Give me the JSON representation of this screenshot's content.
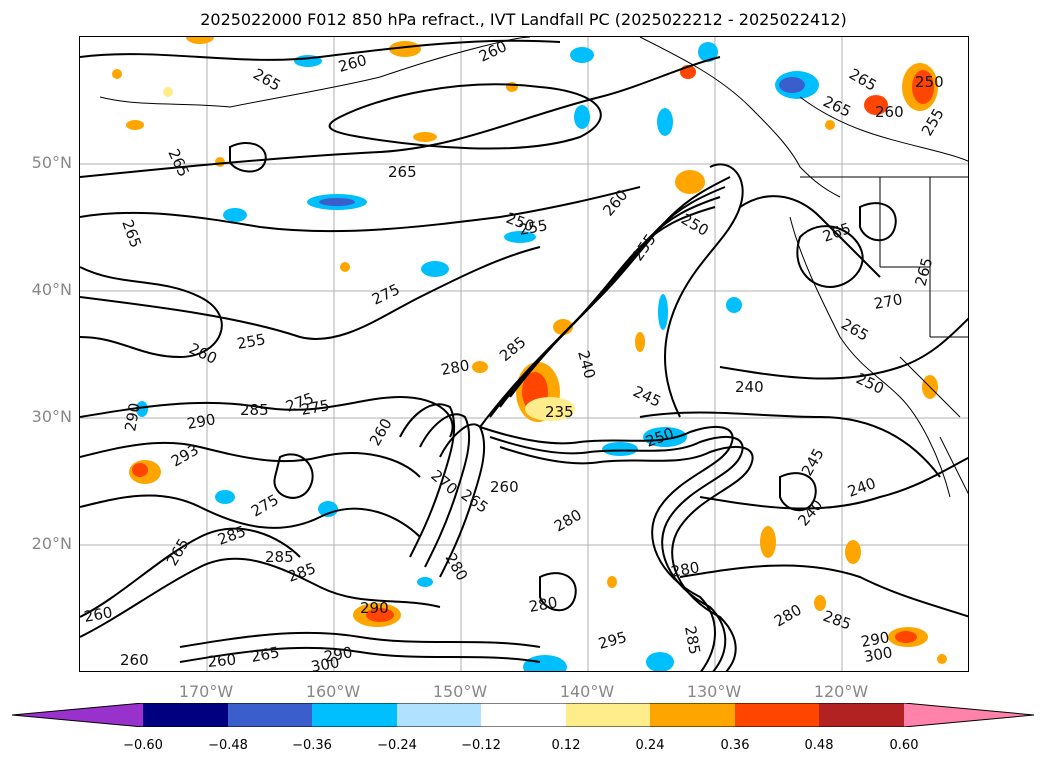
{
  "title": "2025022000 F012 850 hPa refract., IVT Landfall PC (2025022212 - 2025022412)",
  "lat_labels": [
    "50°N",
    "40°N",
    "30°N",
    "20°N"
  ],
  "lon_labels": [
    "170°W",
    "160°W",
    "150°W",
    "140°W",
    "130°W",
    "120°W"
  ],
  "colorbar": {
    "ticks": [
      "−0.60",
      "−0.48",
      "−0.36",
      "−0.24",
      "−0.12",
      "0.12",
      "0.24",
      "0.36",
      "0.48",
      "0.60"
    ],
    "colors": [
      "#9932cc",
      "#000080",
      "#3a5fcd",
      "#00bfff",
      "#b0e2ff",
      "#ffffff",
      "#ffec8b",
      "#ffa500",
      "#ff4500",
      "#b22222",
      "#ff82ab"
    ]
  },
  "contour_labels": [
    "265",
    "260",
    "260",
    "265",
    "265",
    "265",
    "265",
    "265",
    "250",
    "260",
    "255",
    "265",
    "250",
    "255",
    "255",
    "260",
    "250",
    "275",
    "265",
    "270",
    "255",
    "260",
    "265",
    "250",
    "280",
    "285",
    "240",
    "240",
    "285",
    "290",
    "275",
    "290",
    "235",
    "245",
    "250",
    "293",
    "260",
    "265",
    "270",
    "260",
    "245",
    "275",
    "275",
    "285",
    "280",
    "280",
    "240",
    "240",
    "265",
    "285",
    "285",
    "280",
    "280",
    "290",
    "285",
    "280",
    "285",
    "260",
    "265",
    "300",
    "260",
    "260",
    "295",
    "290",
    "300",
    "290"
  ]
}
